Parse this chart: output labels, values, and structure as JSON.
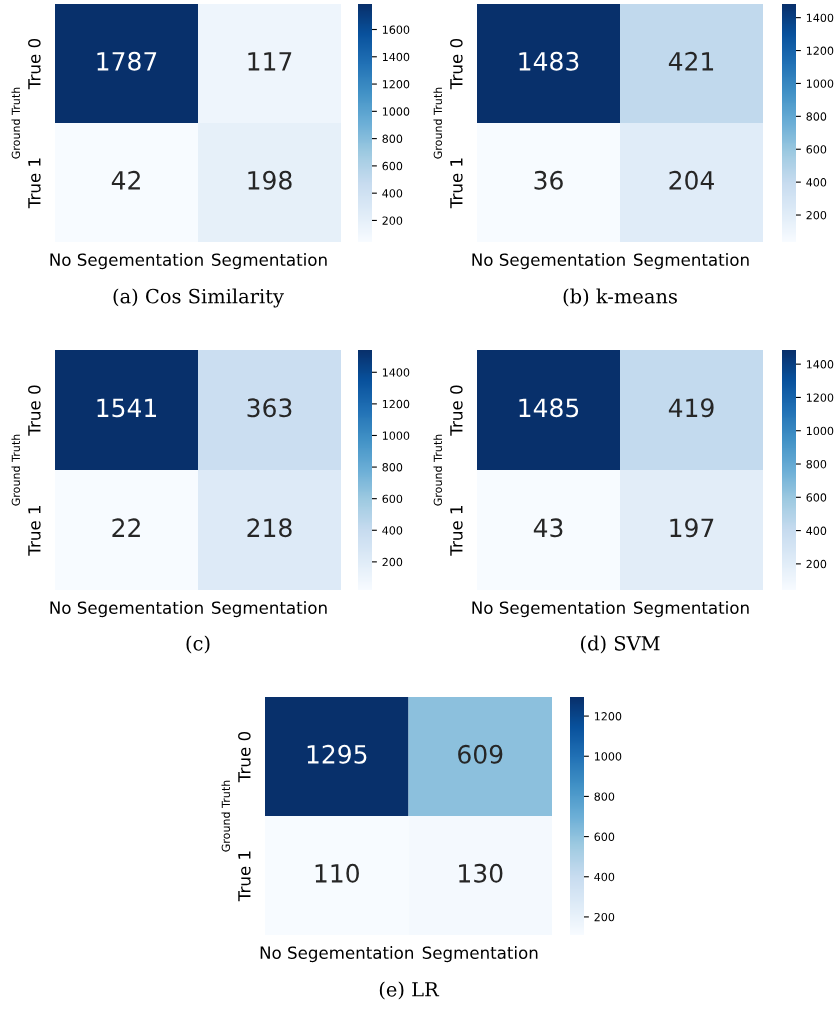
{
  "chart_data": [
    {
      "type": "heatmap",
      "title": "(a) Cos Similarity",
      "ylabel": "Ground Truth",
      "categories": [
        "No Segementation",
        "Segmentation"
      ],
      "y_categories": [
        "True 0",
        "True 1"
      ],
      "cells": [
        [
          1787,
          117
        ],
        [
          42,
          198
        ]
      ],
      "data_labels": true,
      "clim": [
        42,
        1787
      ],
      "cticks": [
        200,
        400,
        600,
        800,
        1000,
        1200,
        1400,
        1600
      ]
    },
    {
      "type": "heatmap",
      "title": "(b) k-means",
      "ylabel": "Ground Truth",
      "categories": [
        "No Segementation",
        "Segmentation"
      ],
      "y_categories": [
        "True 0",
        "True 1"
      ],
      "cells": [
        [
          1483,
          421
        ],
        [
          36,
          204
        ]
      ],
      "data_labels": true,
      "clim": [
        36,
        1483
      ],
      "cticks": [
        200,
        400,
        600,
        800,
        1000,
        1200,
        1400
      ]
    },
    {
      "type": "heatmap",
      "title": "(c)",
      "ylabel": "Ground Truth",
      "categories": [
        "No Segementation",
        "Segmentation"
      ],
      "y_categories": [
        "True 0",
        "True 1"
      ],
      "cells": [
        [
          1541,
          363
        ],
        [
          22,
          218
        ]
      ],
      "data_labels": true,
      "clim": [
        22,
        1541
      ],
      "cticks": [
        200,
        400,
        600,
        800,
        1000,
        1200,
        1400
      ]
    },
    {
      "type": "heatmap",
      "title": "(d) SVM",
      "ylabel": "Ground Truth",
      "categories": [
        "No Segementation",
        "Segmentation"
      ],
      "y_categories": [
        "True 0",
        "True 1"
      ],
      "cells": [
        [
          1485,
          419
        ],
        [
          43,
          197
        ]
      ],
      "data_labels": true,
      "clim": [
        43,
        1485
      ],
      "cticks": [
        200,
        400,
        600,
        800,
        1000,
        1200,
        1400
      ]
    },
    {
      "type": "heatmap",
      "title": "(e) LR",
      "ylabel": "Ground Truth",
      "categories": [
        "No Segementation",
        "Segmentation"
      ],
      "y_categories": [
        "True 0",
        "True 1"
      ],
      "cells": [
        [
          1295,
          609
        ],
        [
          110,
          130
        ]
      ],
      "data_labels": true,
      "clim": [
        110,
        1295
      ],
      "cticks": [
        200,
        400,
        600,
        800,
        1000,
        1200
      ]
    }
  ]
}
